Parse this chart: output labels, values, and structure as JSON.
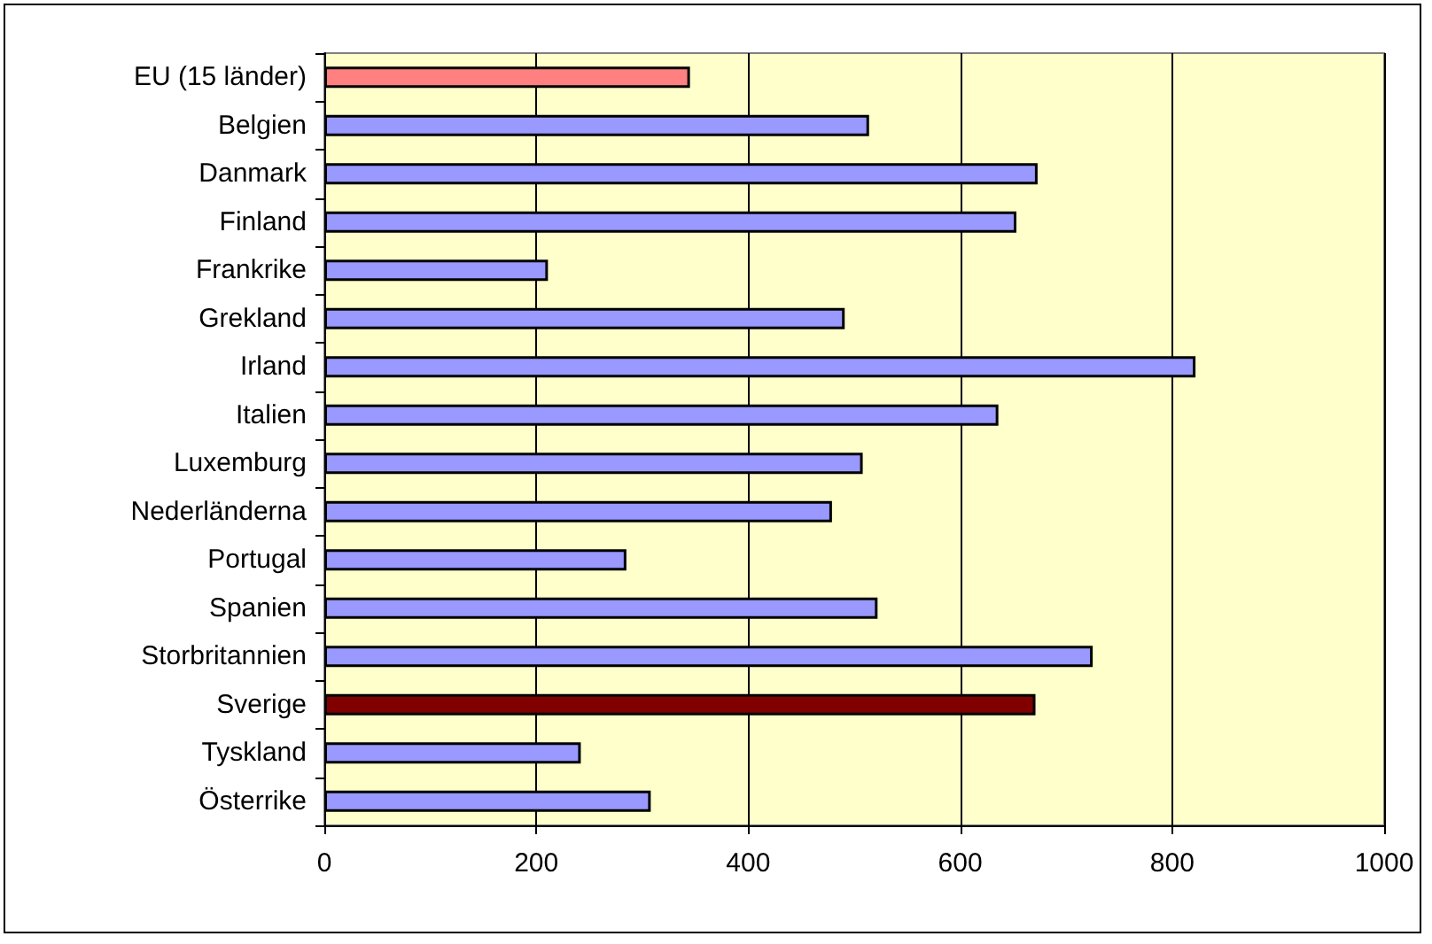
{
  "chart_data": {
    "type": "bar",
    "orientation": "horizontal",
    "categories": [
      "EU (15 länder)",
      "Belgien",
      "Danmark",
      "Finland",
      "Frankrike",
      "Grekland",
      "Irland",
      "Italien",
      "Luxemburg",
      "Nederländerna",
      "Portugal",
      "Spanien",
      "Storbritannien",
      "Sverige",
      "Tyskland",
      "Österrike"
    ],
    "values": [
      345,
      514,
      673,
      653,
      211,
      491,
      822,
      636,
      508,
      479,
      285,
      522,
      725,
      671,
      242,
      308
    ],
    "colors": [
      "#ff8080",
      "#9999ff",
      "#9999ff",
      "#9999ff",
      "#9999ff",
      "#9999ff",
      "#9999ff",
      "#9999ff",
      "#9999ff",
      "#9999ff",
      "#9999ff",
      "#9999ff",
      "#9999ff",
      "#800000",
      "#9999ff",
      "#9999ff"
    ],
    "xlim": [
      0,
      1000
    ],
    "xticks": [
      0,
      200,
      400,
      600,
      800,
      1000
    ],
    "grid": "x"
  }
}
